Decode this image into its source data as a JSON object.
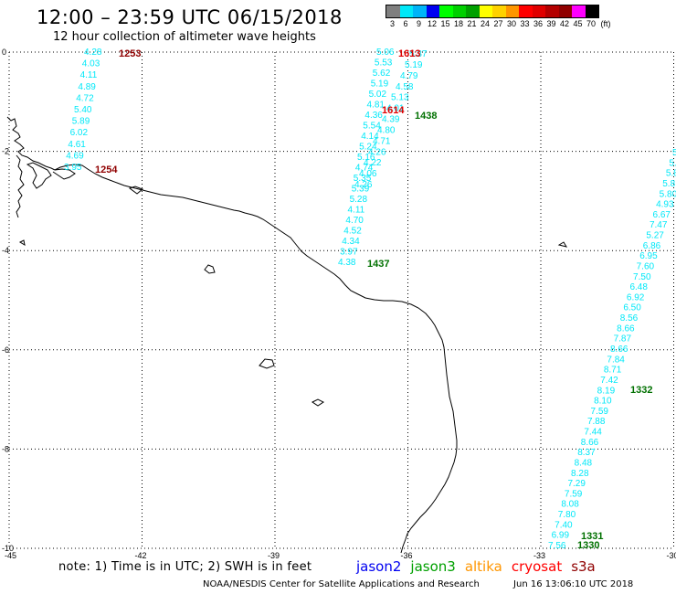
{
  "title": "12:00 – 23:59 UTC 06/15/2018",
  "subtitle": "12 hour collection of altimeter wave heights",
  "scale": {
    "unit_label": "(ft)",
    "ticks": [
      "3",
      "6",
      "9",
      "12",
      "15",
      "18",
      "21",
      "24",
      "27",
      "30",
      "33",
      "36",
      "39",
      "42",
      "45",
      "70"
    ],
    "colors": [
      "#7f7f7f",
      "#00e8f8",
      "#00b4f8",
      "#0000f0",
      "#00ff00",
      "#00d000",
      "#00a000",
      "#ffff00",
      "#ffd200",
      "#ff9600",
      "#ff0000",
      "#e00000",
      "#b40000",
      "#900000",
      "#ff00ff",
      "#000000"
    ]
  },
  "axes": {
    "lon_labels": [
      "-45",
      "-42",
      "-39",
      "-36",
      "-33",
      "-30"
    ],
    "lat_labels": [
      "0",
      "-2",
      "-4",
      "-6",
      "-8",
      "-10"
    ]
  },
  "tracks": [
    {
      "color": "#00e8f8",
      "values": [
        "4.28",
        "4.03",
        "4.11",
        "4.89",
        "4.72",
        "5.40",
        "5.89",
        "6.02",
        "4.61",
        "4.69",
        "3.95"
      ]
    },
    {
      "color": "#00e8f8",
      "values": [
        "5.06",
        "5.53",
        "5.62",
        "5.19",
        "5.02",
        "4.81",
        "4.36",
        "5.54",
        "4.14",
        "5.24",
        "5.16",
        "4.74",
        "5.35",
        "5.39",
        "5.28",
        "4.11",
        "4.70",
        "4.52",
        "4.34",
        "3.97",
        "4.38"
      ]
    },
    {
      "color": "#00e8f8",
      "values": [
        "5.37",
        "5.19",
        "4.79",
        "4.58",
        "5.13",
        "4.01",
        "4.39",
        "4.80",
        "4.71",
        "4.26",
        "4.22",
        "4.06",
        "4.26"
      ]
    },
    {
      "color": "#00e8f8",
      "values": [
        "5.",
        "5.",
        "5.8",
        "5.8",
        "5.80",
        "4.93",
        "6.67",
        "7.47",
        "5.27",
        "6.86",
        "6.95",
        "7.60",
        "7.50",
        "6.48",
        "6.92",
        "6.50",
        "8.56",
        "8.66",
        "7.87",
        "8.66",
        "7.84",
        "8.71",
        "7.42",
        "8.19",
        "8.10",
        "7.59",
        "7.88",
        "7.44",
        "8.66",
        "8.37",
        "8.48",
        "8.28",
        "7.29",
        "7.59",
        "8.08",
        "7.80",
        "7.40",
        "6.99",
        "7.56"
      ]
    }
  ],
  "time_labels": [
    {
      "text": "1253",
      "color": "#900000"
    },
    {
      "text": "1254",
      "color": "#900000"
    },
    {
      "text": "1613",
      "color": "#e00000"
    },
    {
      "text": "1614",
      "color": "#e00000"
    },
    {
      "text": "1438",
      "color": "#007000"
    },
    {
      "text": "1437",
      "color": "#007000"
    },
    {
      "text": "1332",
      "color": "#007000"
    },
    {
      "text": "1331",
      "color": "#007000"
    },
    {
      "text": "1330",
      "color": "#007000"
    }
  ],
  "note": "note:  1) Time is in UTC;  2) SWH is in feet",
  "legend": [
    {
      "text": "jason2",
      "color": "#0000f0"
    },
    {
      "text": "jason3",
      "color": "#00a000"
    },
    {
      "text": "altika",
      "color": "#ff9600"
    },
    {
      "text": "cryosat",
      "color": "#ff0000"
    },
    {
      "text": "s3a",
      "color": "#900000"
    }
  ],
  "footer": {
    "agency": "NOAA/NESDIS Center for Satellite Applications and Research",
    "timestamp": "Jun 16 13:06:10 UTC 2018"
  }
}
